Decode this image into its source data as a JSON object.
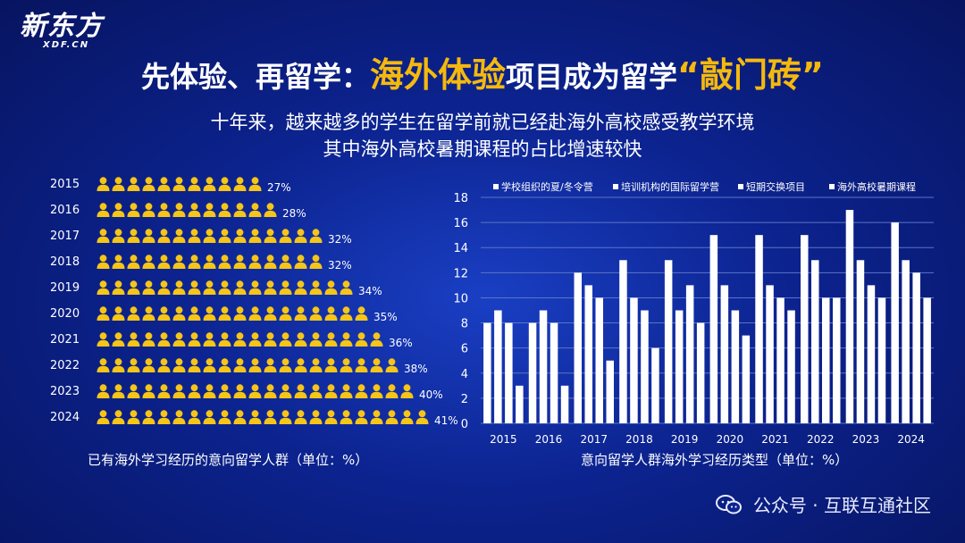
{
  "logo": {
    "main": "新东方",
    "sub": "XDF.CN"
  },
  "title": {
    "part1": "先体验、再留学：",
    "highlight1": "海外体验",
    "part2": "项目成为留学",
    "highlight2": "“敲门砖”"
  },
  "subtitle": [
    "十年来，越来越多的学生在留学前就已经赴海外高校感受教学环境",
    "其中海外高校暑期课程的占比增速较快"
  ],
  "colors": {
    "accent": "#f5b90e",
    "person": "#f5c518",
    "bar": "#ffffff",
    "background": "#0c238f"
  },
  "chart_data": [
    {
      "type": "pictograph",
      "caption": "已有海外学习经历的意向留学人群（单位：%）",
      "categories": [
        "2015",
        "2016",
        "2017",
        "2018",
        "2019",
        "2020",
        "2021",
        "2022",
        "2023",
        "2024"
      ],
      "values": [
        27,
        28,
        32,
        32,
        34,
        35,
        36,
        38,
        40,
        41
      ],
      "labels": [
        "27%",
        "28%",
        "32%",
        "32%",
        "34%",
        "35%",
        "36%",
        "38%",
        "40%",
        "41%"
      ],
      "icon_counts": [
        11,
        12,
        15,
        15,
        17,
        18,
        19,
        20,
        21,
        22
      ],
      "icon": "person-icon"
    },
    {
      "type": "bar",
      "caption": "意向留学人群海外学习经历类型（单位：%）",
      "categories": [
        "2015",
        "2016",
        "2017",
        "2018",
        "2019",
        "2020",
        "2021",
        "2022",
        "2023",
        "2024"
      ],
      "series": [
        {
          "name": "学校组织的夏/冬令营",
          "values": [
            8,
            8,
            12,
            13,
            13,
            15,
            15,
            15,
            17,
            16
          ]
        },
        {
          "name": "培训机构的国际留学营",
          "values": [
            9,
            9,
            11,
            10,
            9,
            11,
            11,
            13,
            13,
            13
          ]
        },
        {
          "name": "短期交换项目",
          "values": [
            8,
            8,
            10,
            9,
            11,
            9,
            10,
            10,
            11,
            12
          ]
        },
        {
          "name": "海外高校暑期课程",
          "values": [
            3,
            3,
            5,
            6,
            8,
            7,
            9,
            10,
            10,
            10
          ]
        }
      ],
      "ylim": [
        0,
        18
      ],
      "yticks": [
        0,
        2,
        4,
        6,
        8,
        10,
        12,
        14,
        16,
        18
      ],
      "grid": true,
      "legend": "top"
    }
  ],
  "footer": {
    "text": "公众号 · 互联互通社区"
  }
}
